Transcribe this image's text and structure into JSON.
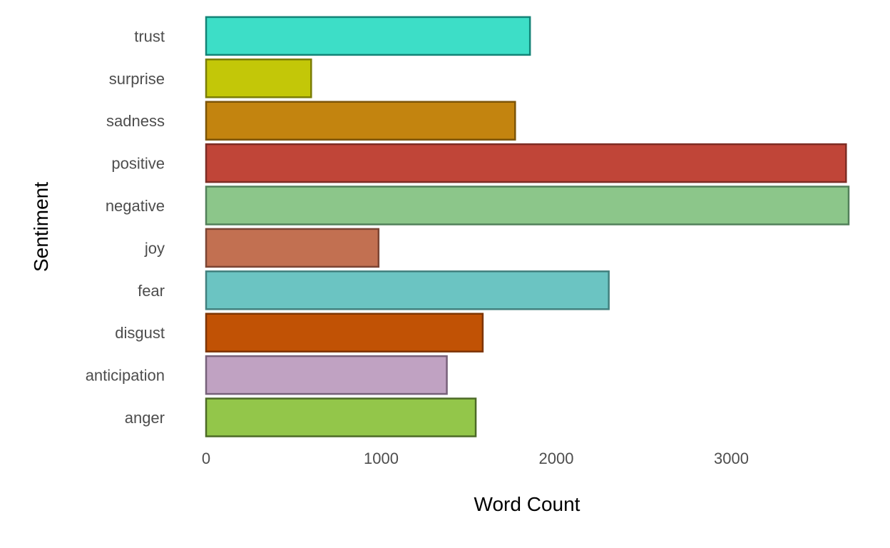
{
  "chart_data": {
    "type": "bar",
    "orientation": "horizontal",
    "title": "",
    "xlabel": "Word Count",
    "ylabel": "Sentiment",
    "categories": [
      "anger",
      "anticipation",
      "disgust",
      "fear",
      "joy",
      "negative",
      "positive",
      "sadness",
      "surprise",
      "trust"
    ],
    "values": [
      1540,
      1375,
      1580,
      2300,
      985,
      3670,
      3655,
      1765,
      600,
      1850
    ],
    "colors": [
      "#93c64a",
      "#c0a2c2",
      "#c15205",
      "#6bc4c2",
      "#c27051",
      "#8cc68a",
      "#c04538",
      "#c3840f",
      "#c3c708",
      "#3ddec7"
    ],
    "outline_colors": [
      "#4c6a26",
      "#77617a",
      "#7d3503",
      "#42807e",
      "#7b4534",
      "#52805a",
      "#7d2d25",
      "#7c5407",
      "#7a7d05",
      "#138377"
    ],
    "xlim": [
      0,
      3670
    ],
    "x_ticks": [
      0,
      1000,
      2000,
      3000
    ],
    "grid": false,
    "legend": "none"
  }
}
